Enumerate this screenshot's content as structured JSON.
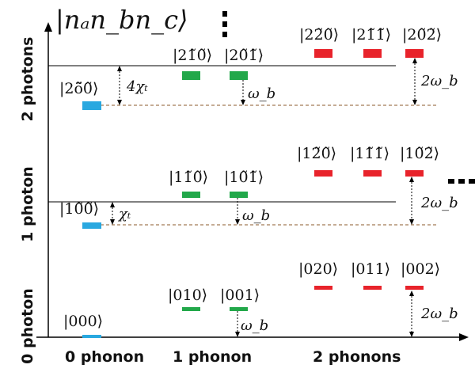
{
  "title_ket": "|nₐn_bn_c⟩",
  "y_labels": {
    "two": "2 photons",
    "one": "1 photon",
    "zero": "0 photon"
  },
  "x_labels": {
    "zero": "0 phonon",
    "one": "1 phonon",
    "two": "2 phonons"
  },
  "kets": {
    "r2_c0": "|2õ̃0̃⟩",
    "r2_c1a": "|21̃0̃⟩",
    "r2_c1b": "|20̃1̃⟩",
    "r2_c2a": "|22̃0̃⟩",
    "r2_c2b": "|21̃1̃⟩",
    "r2_c2c": "|20̃2̃⟩",
    "r1_c0": "|10̃0̃⟩",
    "r1_c1a": "|11̃0̃⟩",
    "r1_c1b": "|10̃1̃⟩",
    "r1_c2a": "|12̃0̃⟩",
    "r1_c2b": "|11̃1̃⟩",
    "r1_c2c": "|10̃2̃⟩",
    "r0_c0": "|000⟩",
    "r0_c1a": "|010⟩",
    "r0_c1b": "|001⟩",
    "r0_c2a": "|020⟩",
    "r0_c2b": "|011⟩",
    "r0_c2c": "|002⟩"
  },
  "annotations": {
    "chi4": "4χₜ",
    "chi": "χₜ",
    "omega_b": "ω_b",
    "two_omega_b": "2ω_b"
  },
  "colors": {
    "zero_phonon": "#29a8e0",
    "one_phonon": "#22a84a",
    "two_phonon": "#e8232b",
    "axis": "#000000",
    "dashed": "#8b5a2b"
  }
}
